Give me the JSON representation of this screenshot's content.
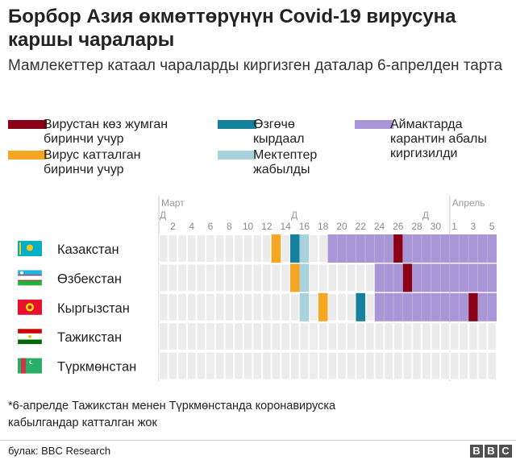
{
  "title": "Борбор Азия өкмөттөрүнүн Covid-19 вирусуна каршы чаралары",
  "subtitle": "Мамлекеттер катаал чараларды киргизген даталар 6-апрелден тарта",
  "legend": [
    {
      "key": "first_death",
      "label_line1": "Вирустан көз жумган",
      "label_line2": "биринчи учур",
      "color": "#8b0019"
    },
    {
      "key": "emergency",
      "label_line1": "Өзгөчө",
      "label_line2": "кырдаал",
      "color": "#16819c"
    },
    {
      "key": "quarantine",
      "label_line1": "Аймактарда",
      "label_line2": "карантин абалы",
      "label_line3": "киргизилди",
      "color": "#a996d6"
    },
    {
      "key": "first_case",
      "label_line1": "Вирус катталган",
      "label_line2": "биринчи учур",
      "color": "#f5a623"
    },
    {
      "key": "schools",
      "label_line1": "Мектептер",
      "label_line2": "жабылды",
      "color": "#a8d3dd"
    }
  ],
  "chart_data": {
    "type": "timeline",
    "title": "Борбор Азия өкмөттөрүнүн Covid-19 вирусуна каршы чаралары",
    "month_labels": [
      {
        "label": "Март",
        "start_day": 1
      },
      {
        "label": "Апрель",
        "start_day": 32
      }
    ],
    "week_marker": "Д",
    "week_marker_days": [
      1,
      15,
      29
    ],
    "day_count": 36,
    "tick_labels": [
      "2",
      "4",
      "6",
      "8",
      "10",
      "12",
      "14",
      "16",
      "18",
      "20",
      "22",
      "24",
      "26",
      "28",
      "30",
      "1",
      "3",
      "5"
    ],
    "tick_days": [
      2,
      4,
      6,
      8,
      10,
      12,
      14,
      16,
      18,
      20,
      22,
      24,
      26,
      28,
      30,
      32,
      34,
      36
    ],
    "countries": [
      {
        "name": "Казакстан",
        "flag": "kz",
        "events": [
          {
            "type": "first_case",
            "day": 13
          },
          {
            "type": "emergency",
            "day": 15
          },
          {
            "type": "schools",
            "day": 16
          },
          {
            "type": "quarantine",
            "start": 19,
            "end": 36
          },
          {
            "type": "first_death",
            "day": 26
          }
        ]
      },
      {
        "name": "Өзбекстан",
        "flag": "uz",
        "events": [
          {
            "type": "first_case",
            "day": 15
          },
          {
            "type": "schools",
            "day": 16
          },
          {
            "type": "quarantine",
            "start": 24,
            "end": 36
          },
          {
            "type": "first_death",
            "day": 27
          }
        ]
      },
      {
        "name": "Кыргызстан",
        "flag": "kg",
        "events": [
          {
            "type": "schools",
            "day": 16
          },
          {
            "type": "first_case",
            "day": 18
          },
          {
            "type": "emergency",
            "day": 22
          },
          {
            "type": "quarantine",
            "start": 24,
            "end": 36
          },
          {
            "type": "first_death",
            "day": 34
          }
        ]
      },
      {
        "name": "Тажикстан",
        "flag": "tj",
        "events": []
      },
      {
        "name": "Түркмөнстан",
        "flag": "tm",
        "events": []
      }
    ]
  },
  "note_line1": "*6-апрелде Тажикстан менен Түркмөнстанда коронавируска",
  "note_line2": "кабылгандар катталган жок",
  "source": "булак: BBC Research",
  "brand_letters": [
    "B",
    "B",
    "C"
  ]
}
